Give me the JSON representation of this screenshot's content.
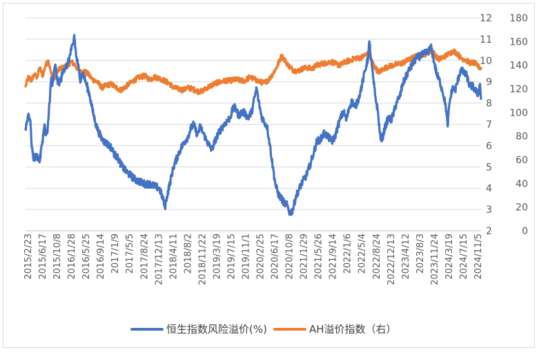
{
  "chart_data": {
    "type": "line",
    "title": "",
    "x_tick_labels": [
      "2015/2/23",
      "2015/6/17",
      "2015/10/8",
      "2016/1/28",
      "2016/5/25",
      "2016/9/14",
      "2017/1/9",
      "2017/5/5",
      "2017/8/24",
      "2017/12/13",
      "2018/4/11",
      "2018/8/2",
      "2018/11/22",
      "2019/3/19",
      "2019/7/15",
      "2019/11/1",
      "2020/2/25",
      "2020/6/17",
      "2020/10/8",
      "2021/1/29",
      "2021/5/26",
      "2021/9/14",
      "2022/1/6",
      "2022/5/4",
      "2022/8/24",
      "2022/12/13",
      "2023/4/12",
      "2023/8/3",
      "2023/11/24",
      "2024/3/19",
      "2024/7/15",
      "2024/11/5"
    ],
    "y_left": {
      "min": 2,
      "max": 12,
      "ticks": [
        "2",
        "3",
        "4",
        "5",
        "6",
        "7",
        "8",
        "9",
        "10",
        "11",
        "12"
      ]
    },
    "y_right": {
      "min": 0,
      "max": 180,
      "ticks": [
        "0",
        "20",
        "40",
        "60",
        "80",
        "100",
        "120",
        "140",
        "160",
        "180"
      ]
    },
    "grid": true,
    "legend_position": "bottom",
    "series": [
      {
        "name": "恒生指数风险溢价(%)",
        "axis": "left",
        "color": "#4472C4",
        "anchors": [
          [
            0,
            6.8
          ],
          [
            3,
            7.5
          ],
          [
            5,
            7.2
          ],
          [
            6,
            6.3
          ],
          [
            8,
            5.4
          ],
          [
            12,
            5.5
          ],
          [
            15,
            5.3
          ],
          [
            17,
            6.0
          ],
          [
            20,
            7.0
          ],
          [
            21,
            6.5
          ],
          [
            23,
            6.6
          ],
          [
            25,
            8.0
          ],
          [
            27,
            9.2
          ],
          [
            28,
            8.8
          ],
          [
            31,
            9.8
          ],
          [
            34,
            8.9
          ],
          [
            37,
            9.1
          ],
          [
            40,
            9.6
          ],
          [
            44,
            9.8
          ],
          [
            48,
            10.5
          ],
          [
            50,
            10.8
          ],
          [
            51,
            11.2
          ],
          [
            53,
            10.2
          ],
          [
            55,
            9.8
          ],
          [
            57,
            9.1
          ],
          [
            60,
            9.4
          ],
          [
            63,
            9.0
          ],
          [
            67,
            8.4
          ],
          [
            70,
            7.7
          ],
          [
            73,
            7.1
          ],
          [
            76,
            6.7
          ],
          [
            80,
            6.3
          ],
          [
            85,
            6.1
          ],
          [
            90,
            5.9
          ],
          [
            93,
            5.6
          ],
          [
            97,
            5.4
          ],
          [
            100,
            5.1
          ],
          [
            105,
            4.8
          ],
          [
            110,
            4.6
          ],
          [
            115,
            4.4
          ],
          [
            120,
            4.3
          ],
          [
            125,
            4.2
          ],
          [
            130,
            4.2
          ],
          [
            135,
            4.1
          ],
          [
            140,
            4.0
          ],
          [
            144,
            3.5
          ],
          [
            146,
            3.1
          ],
          [
            148,
            3.6
          ],
          [
            151,
            4.2
          ],
          [
            155,
            5.0
          ],
          [
            160,
            5.6
          ],
          [
            163,
            5.9
          ],
          [
            167,
            6.2
          ],
          [
            170,
            6.4
          ],
          [
            173,
            6.8
          ],
          [
            176,
            7.0
          ],
          [
            180,
            6.5
          ],
          [
            183,
            6.9
          ],
          [
            186,
            6.6
          ],
          [
            190,
            6.2
          ],
          [
            195,
            5.8
          ],
          [
            200,
            6.4
          ],
          [
            205,
            6.8
          ],
          [
            208,
            7.0
          ],
          [
            210,
            7.1
          ],
          [
            214,
            7.3
          ],
          [
            217,
            7.7
          ],
          [
            220,
            7.8
          ],
          [
            223,
            7.4
          ],
          [
            227,
            7.6
          ],
          [
            230,
            7.5
          ],
          [
            233,
            7.3
          ],
          [
            237,
            7.6
          ],
          [
            240,
            8.3
          ],
          [
            242,
            8.7
          ],
          [
            244,
            8.1
          ],
          [
            247,
            7.4
          ],
          [
            250,
            7.1
          ],
          [
            253,
            6.9
          ],
          [
            256,
            6.0
          ],
          [
            259,
            5.0
          ],
          [
            262,
            4.1
          ],
          [
            265,
            3.7
          ],
          [
            268,
            3.5
          ],
          [
            271,
            3.3
          ],
          [
            274,
            3.2
          ],
          [
            277,
            2.8
          ],
          [
            280,
            3.0
          ],
          [
            283,
            3.6
          ],
          [
            286,
            3.9
          ],
          [
            290,
            4.3
          ],
          [
            294,
            4.6
          ],
          [
            298,
            5.1
          ],
          [
            302,
            5.7
          ],
          [
            305,
            6.2
          ],
          [
            309,
            6.3
          ],
          [
            313,
            6.6
          ],
          [
            317,
            6.4
          ],
          [
            321,
            6.2
          ],
          [
            324,
            6.4
          ],
          [
            327,
            6.9
          ],
          [
            330,
            7.3
          ],
          [
            333,
            7.6
          ],
          [
            336,
            7.2
          ],
          [
            339,
            7.8
          ],
          [
            342,
            8.1
          ],
          [
            345,
            7.8
          ],
          [
            348,
            8.1
          ],
          [
            351,
            8.6
          ],
          [
            354,
            9.2
          ],
          [
            357,
            9.8
          ],
          [
            359,
            10.2
          ],
          [
            360,
            10.9
          ],
          [
            362,
            10.0
          ],
          [
            364,
            9.2
          ],
          [
            366,
            8.4
          ],
          [
            369,
            7.6
          ],
          [
            371,
            6.6
          ],
          [
            373,
            6.2
          ],
          [
            376,
            6.8
          ],
          [
            380,
            7.3
          ],
          [
            383,
            7.2
          ],
          [
            386,
            7.6
          ],
          [
            389,
            8.1
          ],
          [
            392,
            8.3
          ],
          [
            395,
            8.9
          ],
          [
            398,
            9.2
          ],
          [
            401,
            9.5
          ],
          [
            405,
            9.8
          ],
          [
            409,
            10.1
          ],
          [
            413,
            10.2
          ],
          [
            417,
            10.3
          ],
          [
            421,
            10.4
          ],
          [
            425,
            10.6
          ],
          [
            428,
            9.9
          ],
          [
            431,
            9.3
          ],
          [
            434,
            9.0
          ],
          [
            437,
            8.5
          ],
          [
            440,
            7.9
          ],
          [
            442,
            6.9
          ],
          [
            444,
            8.0
          ],
          [
            447,
            8.7
          ],
          [
            450,
            8.6
          ],
          [
            453,
            9.1
          ],
          [
            456,
            9.6
          ],
          [
            459,
            9.4
          ],
          [
            462,
            9.3
          ],
          [
            465,
            8.8
          ],
          [
            468,
            8.8
          ],
          [
            471,
            8.6
          ],
          [
            474,
            8.4
          ],
          [
            476,
            8.9
          ],
          [
            477,
            8.2
          ]
        ]
      },
      {
        "name": "AH溢价指数（右）",
        "axis": "right",
        "color": "#ED7D31",
        "anchors": [
          [
            0,
            122
          ],
          [
            3,
            130
          ],
          [
            6,
            127
          ],
          [
            9,
            132
          ],
          [
            12,
            130
          ],
          [
            15,
            138
          ],
          [
            18,
            131
          ],
          [
            21,
            140
          ],
          [
            24,
            144
          ],
          [
            27,
            132
          ],
          [
            30,
            128
          ],
          [
            33,
            134
          ],
          [
            36,
            137
          ],
          [
            40,
            138
          ],
          [
            44,
            140
          ],
          [
            48,
            143
          ],
          [
            52,
            140
          ],
          [
            55,
            136
          ],
          [
            58,
            134
          ],
          [
            62,
            135
          ],
          [
            65,
            133
          ],
          [
            70,
            128
          ],
          [
            75,
            126
          ],
          [
            80,
            121
          ],
          [
            85,
            123
          ],
          [
            90,
            124
          ],
          [
            95,
            121
          ],
          [
            100,
            119
          ],
          [
            105,
            122
          ],
          [
            110,
            125
          ],
          [
            115,
            128
          ],
          [
            120,
            130
          ],
          [
            125,
            131
          ],
          [
            130,
            128
          ],
          [
            135,
            130
          ],
          [
            140,
            129
          ],
          [
            145,
            127
          ],
          [
            150,
            125
          ],
          [
            155,
            121
          ],
          [
            160,
            120
          ],
          [
            165,
            119
          ],
          [
            170,
            121
          ],
          [
            175,
            120
          ],
          [
            180,
            118
          ],
          [
            185,
            118
          ],
          [
            190,
            121
          ],
          [
            195,
            123
          ],
          [
            200,
            125
          ],
          [
            205,
            126
          ],
          [
            210,
            127
          ],
          [
            215,
            127
          ],
          [
            220,
            128
          ],
          [
            225,
            127
          ],
          [
            230,
            127
          ],
          [
            235,
            130
          ],
          [
            240,
            128
          ],
          [
            245,
            126
          ],
          [
            250,
            125
          ],
          [
            255,
            128
          ],
          [
            260,
            134
          ],
          [
            264,
            140
          ],
          [
            268,
            148
          ],
          [
            271,
            145
          ],
          [
            275,
            140
          ],
          [
            280,
            136
          ],
          [
            285,
            135
          ],
          [
            290,
            137
          ],
          [
            295,
            138
          ],
          [
            300,
            137
          ],
          [
            305,
            140
          ],
          [
            310,
            141
          ],
          [
            315,
            142
          ],
          [
            320,
            143
          ],
          [
            325,
            141
          ],
          [
            330,
            140
          ],
          [
            335,
            143
          ],
          [
            340,
            144
          ],
          [
            345,
            146
          ],
          [
            350,
            146
          ],
          [
            355,
            148
          ],
          [
            358,
            150
          ],
          [
            360,
            148
          ],
          [
            363,
            143
          ],
          [
            366,
            138
          ],
          [
            370,
            134
          ],
          [
            375,
            137
          ],
          [
            380,
            139
          ],
          [
            385,
            140
          ],
          [
            390,
            141
          ],
          [
            395,
            142
          ],
          [
            400,
            144
          ],
          [
            405,
            146
          ],
          [
            410,
            148
          ],
          [
            415,
            149
          ],
          [
            420,
            150
          ],
          [
            424,
            152
          ],
          [
            428,
            150
          ],
          [
            432,
            145
          ],
          [
            436,
            146
          ],
          [
            440,
            148
          ],
          [
            444,
            150
          ],
          [
            448,
            152
          ],
          [
            452,
            150
          ],
          [
            456,
            146
          ],
          [
            460,
            145
          ],
          [
            465,
            142
          ],
          [
            470,
            142
          ],
          [
            474,
            139
          ],
          [
            477,
            137
          ]
        ]
      }
    ]
  }
}
